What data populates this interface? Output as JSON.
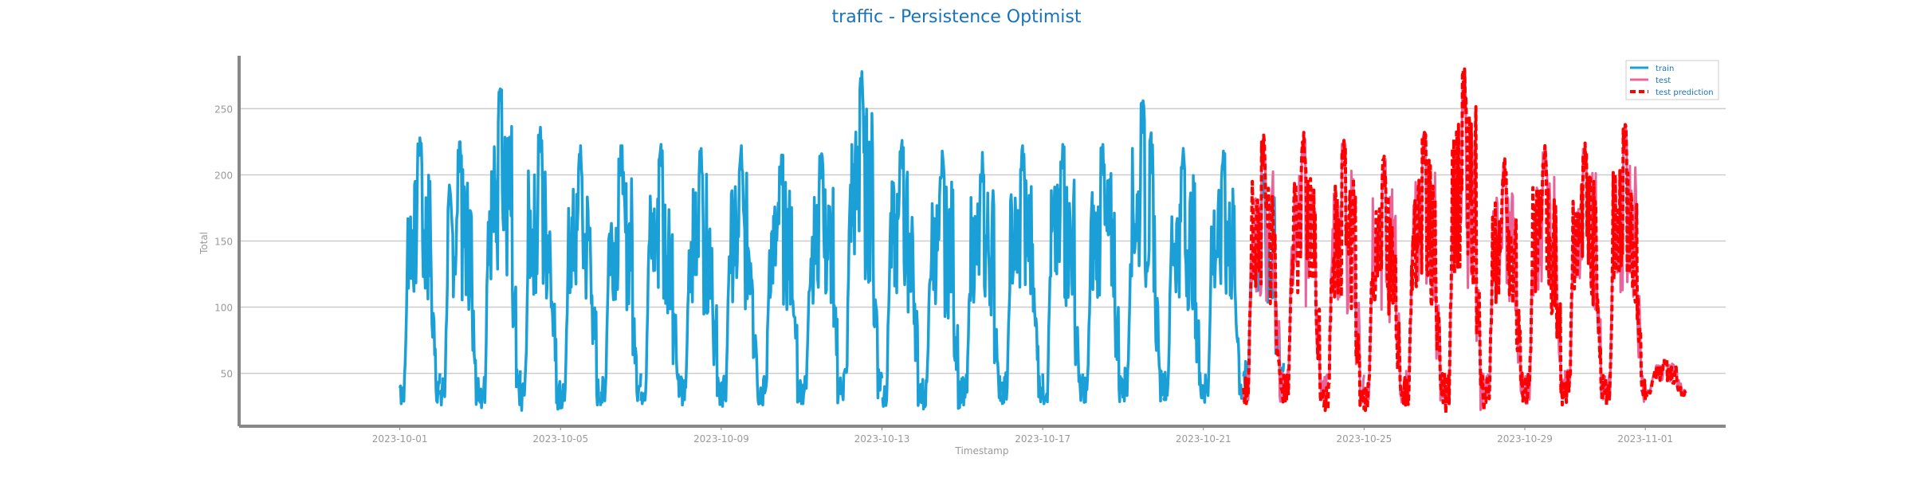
{
  "chart_data": {
    "type": "line",
    "title": "traffic - Persistence Optimist",
    "xlabel": "Timestamp",
    "ylabel": "Total",
    "x_range": [
      "2023-09-27",
      "2023-11-03"
    ],
    "ylim": [
      10,
      290
    ],
    "y_ticks": [
      50,
      100,
      150,
      200,
      250
    ],
    "x_ticks": [
      "2023-10-01",
      "2023-10-05",
      "2023-10-09",
      "2023-10-13",
      "2023-10-17",
      "2023-10-21",
      "2023-10-25",
      "2023-10-29",
      "2023-11-01"
    ],
    "grid": "horizontal",
    "legend_position": "top-right",
    "colors": {
      "train": "#1a9fd6",
      "test": "#e8659c",
      "prediction": "#ff0000",
      "title": "#1a73b8",
      "ticks": "#999999",
      "grid": "#cccccc",
      "axis": "#888888"
    },
    "series": [
      {
        "name": "train",
        "x": [
          "2023-10-01",
          "2023-10-02",
          "2023-10-03",
          "2023-10-04",
          "2023-10-05",
          "2023-10-06",
          "2023-10-07",
          "2023-10-08",
          "2023-10-09",
          "2023-10-10",
          "2023-10-11",
          "2023-10-12",
          "2023-10-13",
          "2023-10-14",
          "2023-10-15",
          "2023-10-16",
          "2023-10-17",
          "2023-10-18",
          "2023-10-19",
          "2023-10-20",
          "2023-10-21",
          "2023-10-22"
        ],
        "peaks": [
          228,
          225,
          265,
          236,
          222,
          222,
          223,
          220,
          222,
          215,
          216,
          278,
          226,
          218,
          217,
          222,
          223,
          223,
          256,
          220,
          218,
          200
        ],
        "troughs": [
          27,
          26,
          24,
          22,
          24,
          28,
          27,
          26,
          25,
          26,
          27,
          30,
          25,
          23,
          26,
          28,
          27,
          28,
          29,
          30,
          28,
          40
        ]
      },
      {
        "name": "test",
        "x": [
          "2023-10-22",
          "2023-10-23",
          "2023-10-24",
          "2023-10-25",
          "2023-10-26",
          "2023-10-27",
          "2023-10-28",
          "2023-10-29",
          "2023-10-30",
          "2023-10-31",
          "2023-11-01"
        ],
        "peaks": [
          228,
          230,
          226,
          212,
          232,
          276,
          210,
          222,
          222,
          236,
          60
        ],
        "troughs": [
          28,
          30,
          25,
          22,
          28,
          22,
          30,
          27,
          30,
          28,
          35
        ]
      },
      {
        "name": "test prediction",
        "x": [
          "2023-10-22",
          "2023-10-23",
          "2023-10-24",
          "2023-10-25",
          "2023-10-26",
          "2023-10-27",
          "2023-10-28",
          "2023-10-29",
          "2023-10-30",
          "2023-10-31",
          "2023-11-01"
        ],
        "peaks": [
          230,
          232,
          226,
          214,
          232,
          280,
          212,
          222,
          224,
          238,
          60
        ],
        "troughs": [
          26,
          28,
          22,
          22,
          26,
          20,
          28,
          26,
          28,
          26,
          33
        ]
      }
    ]
  }
}
